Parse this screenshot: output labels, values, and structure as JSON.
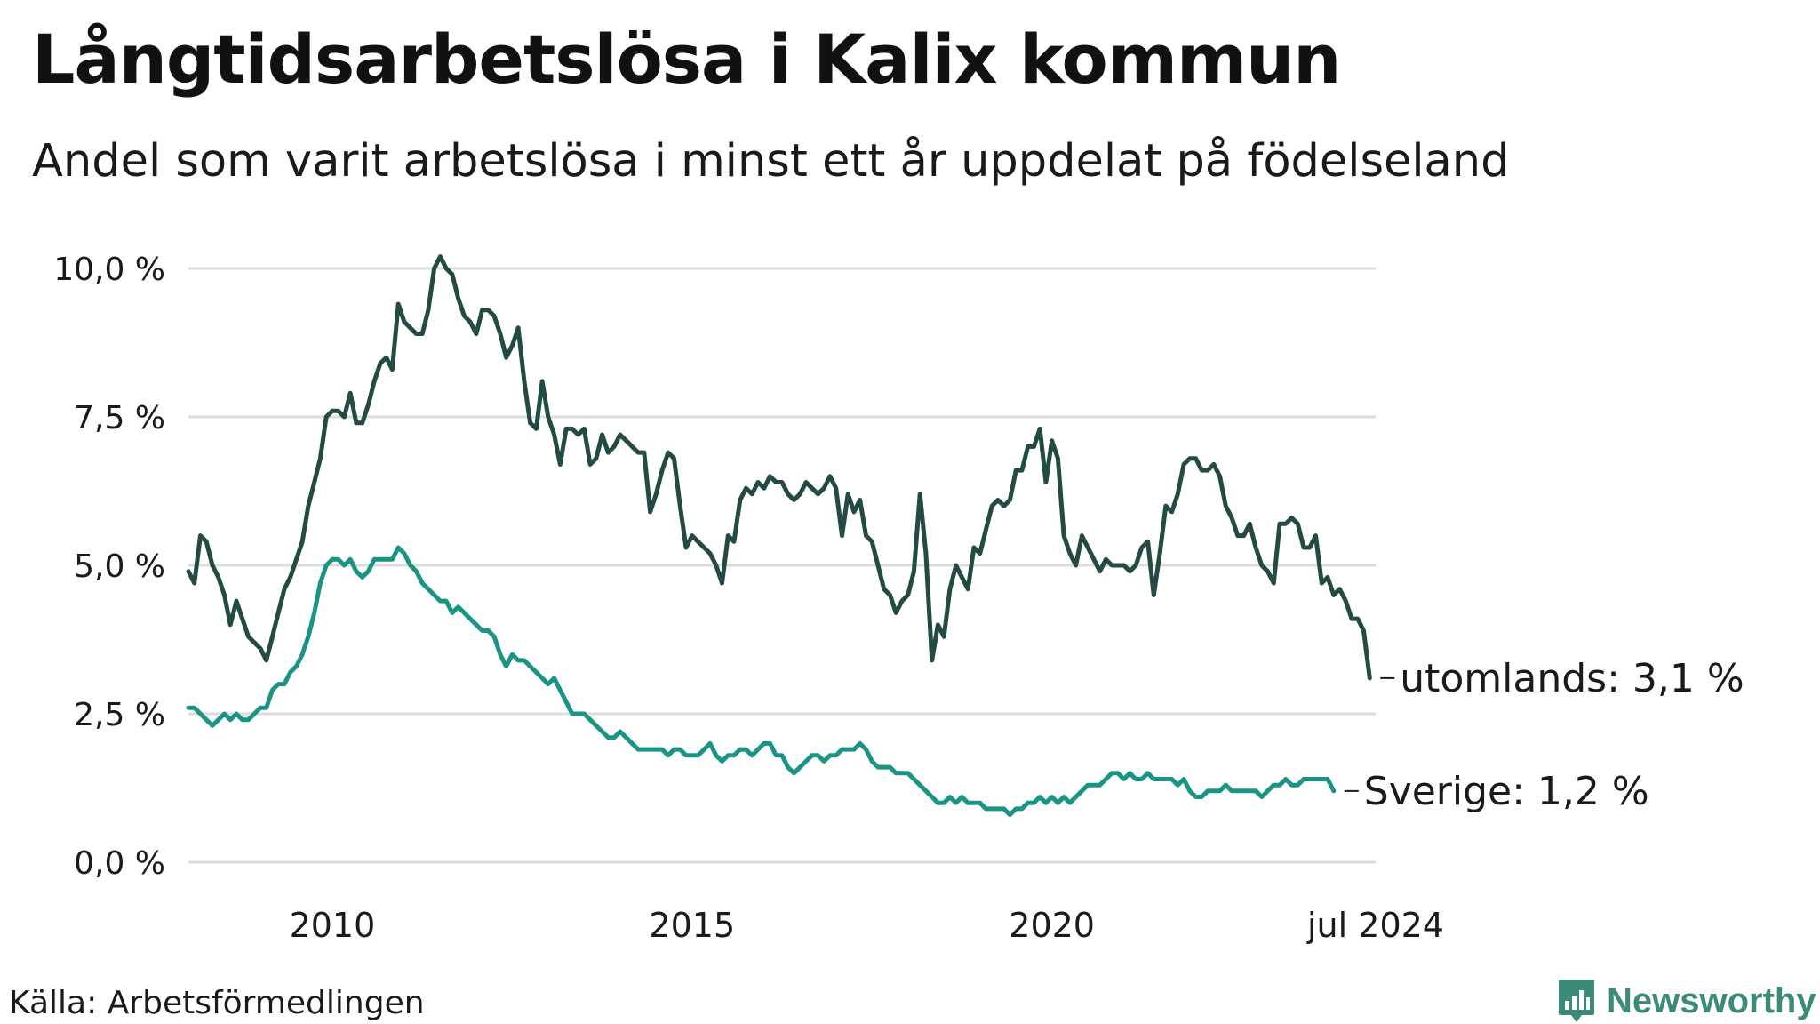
{
  "title": "Långtidsarbetslösa i Kalix kommun",
  "subtitle": "Andel som varit arbetslösa i minst ett år uppdelat på födelseland",
  "source": "Källa: Arbetsförmedlingen",
  "brand": "Newsworthy",
  "colors": {
    "utomlands": "#234a43",
    "sverige": "#1a9485",
    "grid": "#dcdcdc",
    "brand": "#3c8a78"
  },
  "chart_data": {
    "type": "line",
    "title": "Långtidsarbetslösa i Kalix kommun",
    "xlabel": "",
    "ylabel": "",
    "x_start": 2008.0,
    "x_step_months": 1,
    "xlim": [
      2008.0,
      2024.5
    ],
    "ylim": [
      0,
      10
    ],
    "y_ticks": [
      0,
      2.5,
      5,
      7.5,
      10
    ],
    "y_tick_labels": [
      "0,0 %",
      "2,5 %",
      "5,0 %",
      "7,5 %",
      "10,0 %"
    ],
    "x_ticks": [
      2010,
      2015,
      2020,
      2024.5
    ],
    "x_tick_labels": [
      "2010",
      "2015",
      "2020",
      "jul 2024"
    ],
    "grid": true,
    "series": [
      {
        "name": "utomlands",
        "label": "utomlands: 3,1 %",
        "color": "#234a43",
        "values": [
          4.9,
          4.7,
          5.5,
          5.4,
          5.0,
          4.8,
          4.5,
          4.0,
          4.4,
          4.1,
          3.8,
          3.7,
          3.6,
          3.4,
          3.8,
          4.2,
          4.6,
          4.8,
          5.1,
          5.4,
          6.0,
          6.4,
          6.8,
          7.5,
          7.6,
          7.6,
          7.5,
          7.9,
          7.4,
          7.4,
          7.7,
          8.1,
          8.4,
          8.5,
          8.3,
          9.4,
          9.1,
          9.0,
          8.9,
          8.9,
          9.3,
          10.0,
          10.2,
          10.0,
          9.9,
          9.5,
          9.2,
          9.1,
          8.9,
          9.3,
          9.3,
          9.2,
          8.9,
          8.5,
          8.7,
          9.0,
          8.1,
          7.4,
          7.3,
          8.1,
          7.5,
          7.2,
          6.7,
          7.3,
          7.3,
          7.2,
          7.3,
          6.7,
          6.8,
          7.2,
          6.9,
          7.0,
          7.2,
          7.1,
          7.0,
          6.9,
          6.9,
          5.9,
          6.2,
          6.6,
          6.9,
          6.8,
          6.0,
          5.3,
          5.5,
          5.4,
          5.3,
          5.2,
          5.0,
          4.7,
          5.5,
          5.4,
          6.1,
          6.3,
          6.2,
          6.4,
          6.3,
          6.5,
          6.4,
          6.4,
          6.2,
          6.1,
          6.2,
          6.4,
          6.3,
          6.2,
          6.3,
          6.5,
          6.3,
          5.5,
          6.2,
          5.9,
          6.1,
          5.5,
          5.4,
          5.0,
          4.6,
          4.5,
          4.2,
          4.4,
          4.5,
          4.9,
          6.2,
          5.2,
          3.4,
          4.0,
          3.8,
          4.6,
          5.0,
          4.8,
          4.6,
          5.3,
          5.2,
          5.6,
          6.0,
          6.1,
          6.0,
          6.1,
          6.6,
          6.6,
          7.0,
          7.0,
          7.3,
          6.4,
          7.1,
          6.8,
          5.5,
          5.2,
          5.0,
          5.5,
          5.3,
          5.1,
          4.9,
          5.1,
          5.0,
          5.0,
          5.0,
          4.9,
          5.0,
          5.3,
          5.4,
          4.5,
          5.2,
          6.0,
          5.9,
          6.2,
          6.7,
          6.8,
          6.8,
          6.6,
          6.6,
          6.7,
          6.5,
          6.0,
          5.8,
          5.5,
          5.5,
          5.7,
          5.3,
          5.0,
          4.9,
          4.7,
          5.7,
          5.7,
          5.8,
          5.7,
          5.3,
          5.3,
          5.5,
          4.7,
          4.8,
          4.5,
          4.6,
          4.4,
          4.1,
          4.1,
          3.9,
          3.1
        ]
      },
      {
        "name": "Sverige",
        "label": "Sverige: 1,2 %",
        "color": "#1a9485",
        "values": [
          2.6,
          2.6,
          2.5,
          2.4,
          2.3,
          2.4,
          2.5,
          2.4,
          2.5,
          2.4,
          2.4,
          2.5,
          2.6,
          2.6,
          2.9,
          3.0,
          3.0,
          3.2,
          3.3,
          3.5,
          3.8,
          4.2,
          4.7,
          5.0,
          5.1,
          5.1,
          5.0,
          5.1,
          4.9,
          4.8,
          4.9,
          5.1,
          5.1,
          5.1,
          5.1,
          5.3,
          5.2,
          5.0,
          4.9,
          4.7,
          4.6,
          4.5,
          4.4,
          4.4,
          4.2,
          4.3,
          4.2,
          4.1,
          4.0,
          3.9,
          3.9,
          3.8,
          3.5,
          3.3,
          3.5,
          3.4,
          3.4,
          3.3,
          3.2,
          3.1,
          3.0,
          3.1,
          2.9,
          2.7,
          2.5,
          2.5,
          2.5,
          2.4,
          2.3,
          2.2,
          2.1,
          2.1,
          2.2,
          2.1,
          2.0,
          1.9,
          1.9,
          1.9,
          1.9,
          1.9,
          1.8,
          1.9,
          1.9,
          1.8,
          1.8,
          1.8,
          1.9,
          2.0,
          1.8,
          1.7,
          1.8,
          1.8,
          1.9,
          1.9,
          1.8,
          1.9,
          2.0,
          2.0,
          1.8,
          1.8,
          1.6,
          1.5,
          1.6,
          1.7,
          1.8,
          1.8,
          1.7,
          1.8,
          1.8,
          1.9,
          1.9,
          1.9,
          2.0,
          1.9,
          1.7,
          1.6,
          1.6,
          1.6,
          1.5,
          1.5,
          1.5,
          1.4,
          1.3,
          1.2,
          1.1,
          1.0,
          1.0,
          1.1,
          1.0,
          1.1,
          1.0,
          1.0,
          1.0,
          0.9,
          0.9,
          0.9,
          0.9,
          0.8,
          0.9,
          0.9,
          1.0,
          1.0,
          1.1,
          1.0,
          1.1,
          1.0,
          1.1,
          1.0,
          1.1,
          1.2,
          1.3,
          1.3,
          1.3,
          1.4,
          1.5,
          1.5,
          1.4,
          1.5,
          1.4,
          1.4,
          1.5,
          1.4,
          1.4,
          1.4,
          1.4,
          1.3,
          1.4,
          1.2,
          1.1,
          1.1,
          1.2,
          1.2,
          1.2,
          1.3,
          1.2,
          1.2,
          1.2,
          1.2,
          1.2,
          1.1,
          1.2,
          1.3,
          1.3,
          1.4,
          1.3,
          1.3,
          1.4,
          1.4,
          1.4,
          1.4,
          1.4,
          1.2
        ]
      }
    ]
  }
}
